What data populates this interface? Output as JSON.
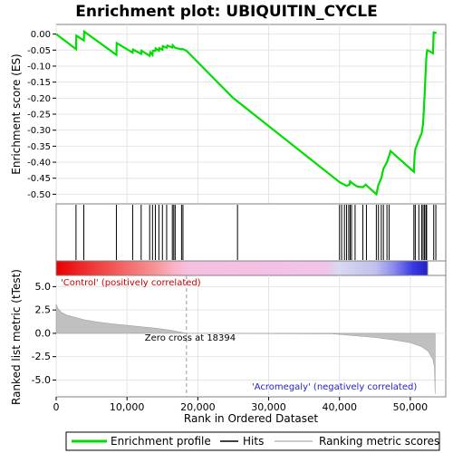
{
  "chart_data": {
    "type": "line",
    "title": "Enrichment plot: UBIQUITIN_CYCLE",
    "top_panel": {
      "ylabel": "Enrichment score (ES)",
      "ylim": [
        -0.53,
        0.03
      ],
      "yticks": [
        0.0,
        -0.05,
        -0.1,
        -0.15,
        -0.2,
        -0.25,
        -0.3,
        -0.35,
        -0.4,
        -0.45,
        -0.5
      ],
      "ytick_labels": [
        "0.00",
        "-0.05",
        "-0.10",
        "-0.15",
        "-0.20",
        "-0.25",
        "-0.30",
        "-0.35",
        "-0.40",
        "-0.45",
        "-0.50"
      ],
      "series": [
        {
          "name": "Enrichment profile",
          "color": "#00dd00",
          "points": [
            [
              0,
              0.0
            ],
            [
              2800,
              -0.047
            ],
            [
              2850,
              -0.005
            ],
            [
              3900,
              -0.02
            ],
            [
              3950,
              0.008
            ],
            [
              8500,
              -0.065
            ],
            [
              8550,
              -0.028
            ],
            [
              10800,
              -0.058
            ],
            [
              10850,
              -0.048
            ],
            [
              12000,
              -0.062
            ],
            [
              12050,
              -0.052
            ],
            [
              13200,
              -0.068
            ],
            [
              13300,
              -0.057
            ],
            [
              13600,
              -0.065
            ],
            [
              13650,
              -0.052
            ],
            [
              14000,
              -0.052
            ],
            [
              14050,
              -0.045
            ],
            [
              14500,
              -0.052
            ],
            [
              14550,
              -0.044
            ],
            [
              15000,
              -0.049
            ],
            [
              15050,
              -0.038
            ],
            [
              15600,
              -0.043
            ],
            [
              15700,
              -0.036
            ],
            [
              16400,
              -0.042
            ],
            [
              16450,
              -0.035
            ],
            [
              16800,
              -0.043
            ],
            [
              17700,
              -0.048
            ],
            [
              17800,
              -0.046
            ],
            [
              18394,
              -0.052
            ],
            [
              25000,
              -0.2
            ],
            [
              40000,
              -0.462
            ],
            [
              40300,
              -0.466
            ],
            [
              40700,
              -0.47
            ],
            [
              41000,
              -0.474
            ],
            [
              41400,
              -0.47
            ],
            [
              41500,
              -0.46
            ],
            [
              41700,
              -0.464
            ],
            [
              42100,
              -0.47
            ],
            [
              42500,
              -0.476
            ],
            [
              43300,
              -0.478
            ],
            [
              43700,
              -0.47
            ],
            [
              45200,
              -0.5
            ],
            [
              45300,
              -0.49
            ],
            [
              45500,
              -0.47
            ],
            [
              45900,
              -0.45
            ],
            [
              46200,
              -0.42
            ],
            [
              46700,
              -0.4
            ],
            [
              47000,
              -0.38
            ],
            [
              47200,
              -0.365
            ],
            [
              50500,
              -0.43
            ],
            [
              50600,
              -0.38
            ],
            [
              50700,
              -0.36
            ],
            [
              51200,
              -0.33
            ],
            [
              51600,
              -0.31
            ],
            [
              51800,
              -0.28
            ],
            [
              52000,
              -0.2
            ],
            [
              52100,
              -0.15
            ],
            [
              52200,
              -0.1
            ],
            [
              52300,
              -0.06
            ],
            [
              52400,
              -0.05
            ],
            [
              53200,
              -0.06
            ],
            [
              53300,
              0.005
            ],
            [
              53700,
              0.003
            ]
          ]
        }
      ]
    },
    "hits": [
      2800,
      3900,
      8500,
      10800,
      12000,
      13200,
      13600,
      14000,
      14500,
      15000,
      15600,
      16400,
      16600,
      16800,
      17700,
      17900,
      25600,
      40000,
      40300,
      40700,
      41000,
      41300,
      41500,
      41700,
      42200,
      43300,
      43800,
      45200,
      45500,
      45900,
      46200,
      46700,
      47000,
      50500,
      50700,
      51200,
      51600,
      51800,
      52000,
      52200,
      52300,
      53300,
      53600
    ],
    "bottom_panel": {
      "ylabel": "Ranked list metric (tTest)",
      "xlabel": "Rank in Ordered Dataset",
      "xlim": [
        0,
        55000
      ],
      "ylim": [
        -6.8,
        6.2
      ],
      "xticks": [
        0,
        10000,
        20000,
        30000,
        40000,
        50000
      ],
      "xtick_labels": [
        "0",
        "10,000",
        "20,000",
        "30,000",
        "40,000",
        "50,000"
      ],
      "yticks": [
        5.0,
        2.5,
        0.0,
        -2.5,
        -5.0
      ],
      "ytick_labels": [
        "5.0",
        "2.5",
        "0.0",
        "-2.5",
        "-5.0"
      ],
      "zero_cross": 18394,
      "zero_cross_label": "Zero cross at 18394",
      "positive_label": "'Control' (positively correlated)",
      "negative_label": "'Acromegaly' (negatively correlated)",
      "metric_profile": [
        [
          0,
          3.1
        ],
        [
          300,
          2.6
        ],
        [
          800,
          2.2
        ],
        [
          1500,
          1.95
        ],
        [
          2500,
          1.75
        ],
        [
          4000,
          1.45
        ],
        [
          6000,
          1.2
        ],
        [
          8000,
          1.0
        ],
        [
          10000,
          0.85
        ],
        [
          12000,
          0.7
        ],
        [
          14000,
          0.55
        ],
        [
          16000,
          0.35
        ],
        [
          18394,
          0.0
        ],
        [
          25000,
          -0.02
        ],
        [
          39000,
          -0.05
        ],
        [
          42000,
          -0.25
        ],
        [
          45000,
          -0.45
        ],
        [
          48000,
          -0.75
        ],
        [
          50000,
          -1.0
        ],
        [
          51500,
          -1.4
        ],
        [
          52500,
          -1.9
        ],
        [
          53200,
          -2.8
        ],
        [
          53400,
          -3.6
        ],
        [
          53500,
          -6.5
        ]
      ]
    },
    "legend": [
      {
        "label": "Enrichment profile",
        "color": "#00dd00"
      },
      {
        "label": "Hits",
        "color": "#000000"
      },
      {
        "label": "Ranking metric scores",
        "color": "#bbbbbb"
      }
    ],
    "grid": true,
    "legend_position": "bottom"
  }
}
